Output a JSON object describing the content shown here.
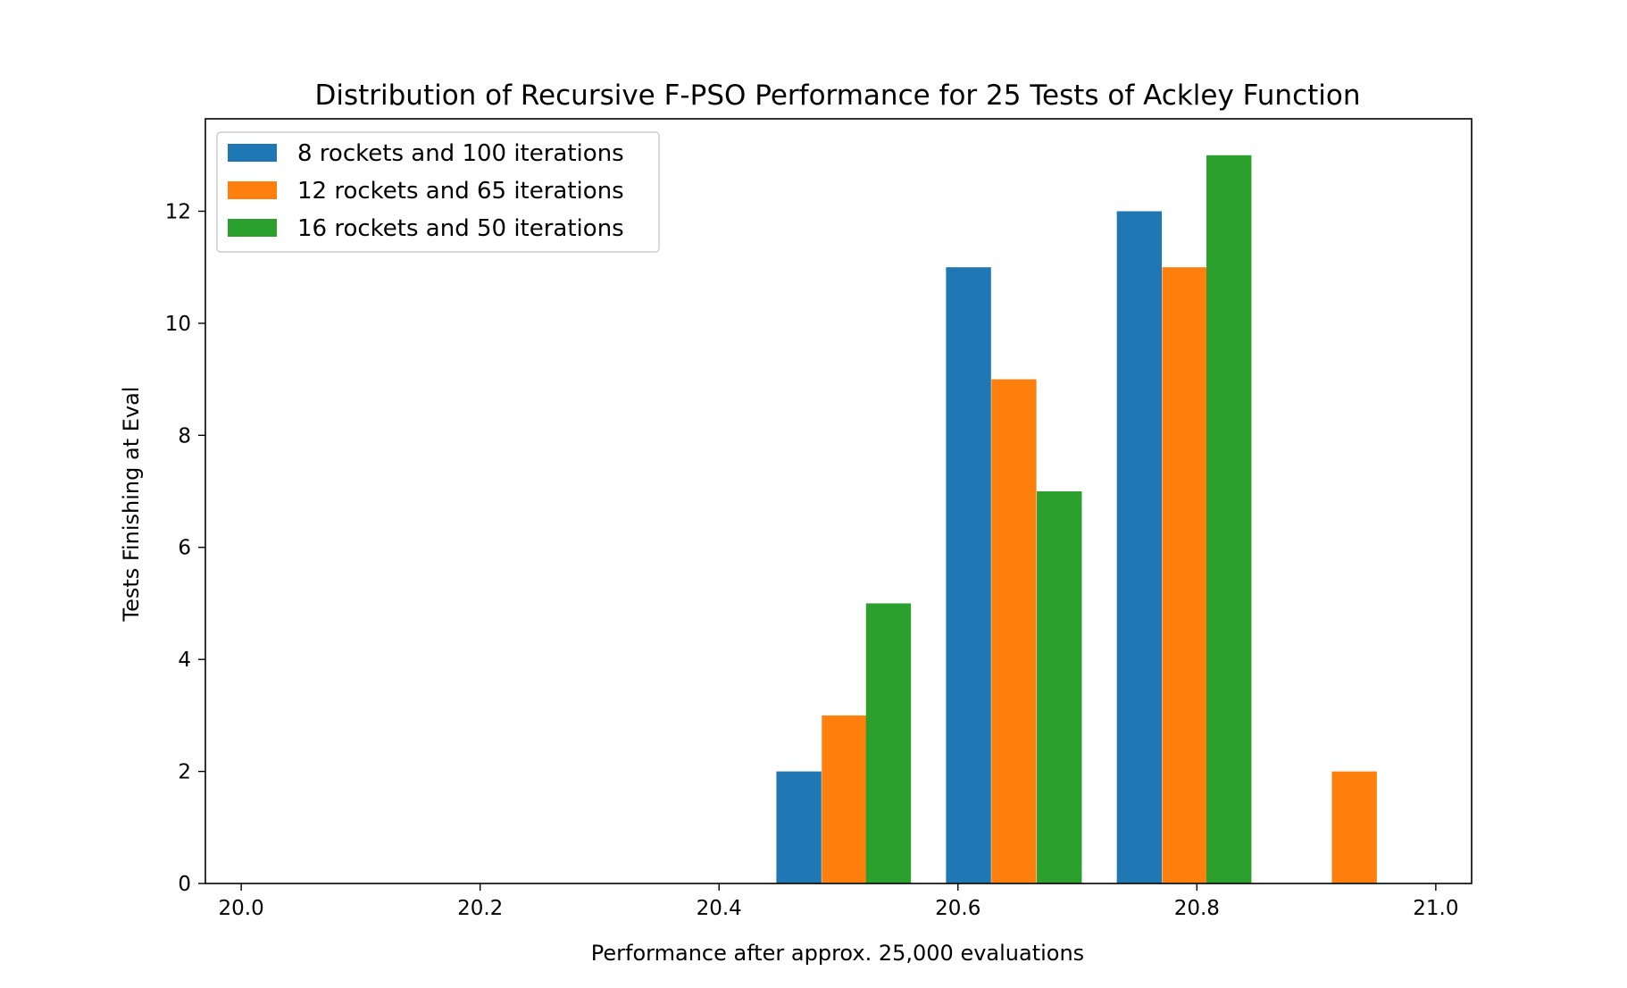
{
  "chart_data": {
    "type": "bar",
    "title": "Distribution of Recursive F-PSO Performance for 25 Tests of Ackley Function",
    "xlabel": "Performance after approx. 25,000 evaluations",
    "ylabel": "Tests Finishing at Eval",
    "xlim": [
      19.97,
      21.03
    ],
    "ylim": [
      0,
      13.65
    ],
    "xticks": [
      "20.0",
      "20.2",
      "20.4",
      "20.6",
      "20.8",
      "21.0"
    ],
    "yticks": [
      "0",
      "2",
      "4",
      "6",
      "8",
      "10",
      "12"
    ],
    "grid": false,
    "legend_position": "top-left",
    "bin_width": 0.113,
    "series": [
      {
        "name": "8 rockets and 100 iterations",
        "color": "#1f77b4",
        "bars": [
          {
            "x": 20.448,
            "value": 2
          },
          {
            "x": 20.59,
            "value": 11
          },
          {
            "x": 20.733,
            "value": 12
          }
        ]
      },
      {
        "name": "12 rockets and 65 iterations",
        "color": "#ff7f0e",
        "bars": [
          {
            "x": 20.486,
            "value": 3
          },
          {
            "x": 20.628,
            "value": 9
          },
          {
            "x": 20.771,
            "value": 11
          },
          {
            "x": 20.913,
            "value": 2
          }
        ]
      },
      {
        "name": "16 rockets and 50 iterations",
        "color": "#2ca02c",
        "bars": [
          {
            "x": 20.523,
            "value": 5
          },
          {
            "x": 20.666,
            "value": 7
          },
          {
            "x": 20.808,
            "value": 13
          }
        ]
      }
    ]
  }
}
